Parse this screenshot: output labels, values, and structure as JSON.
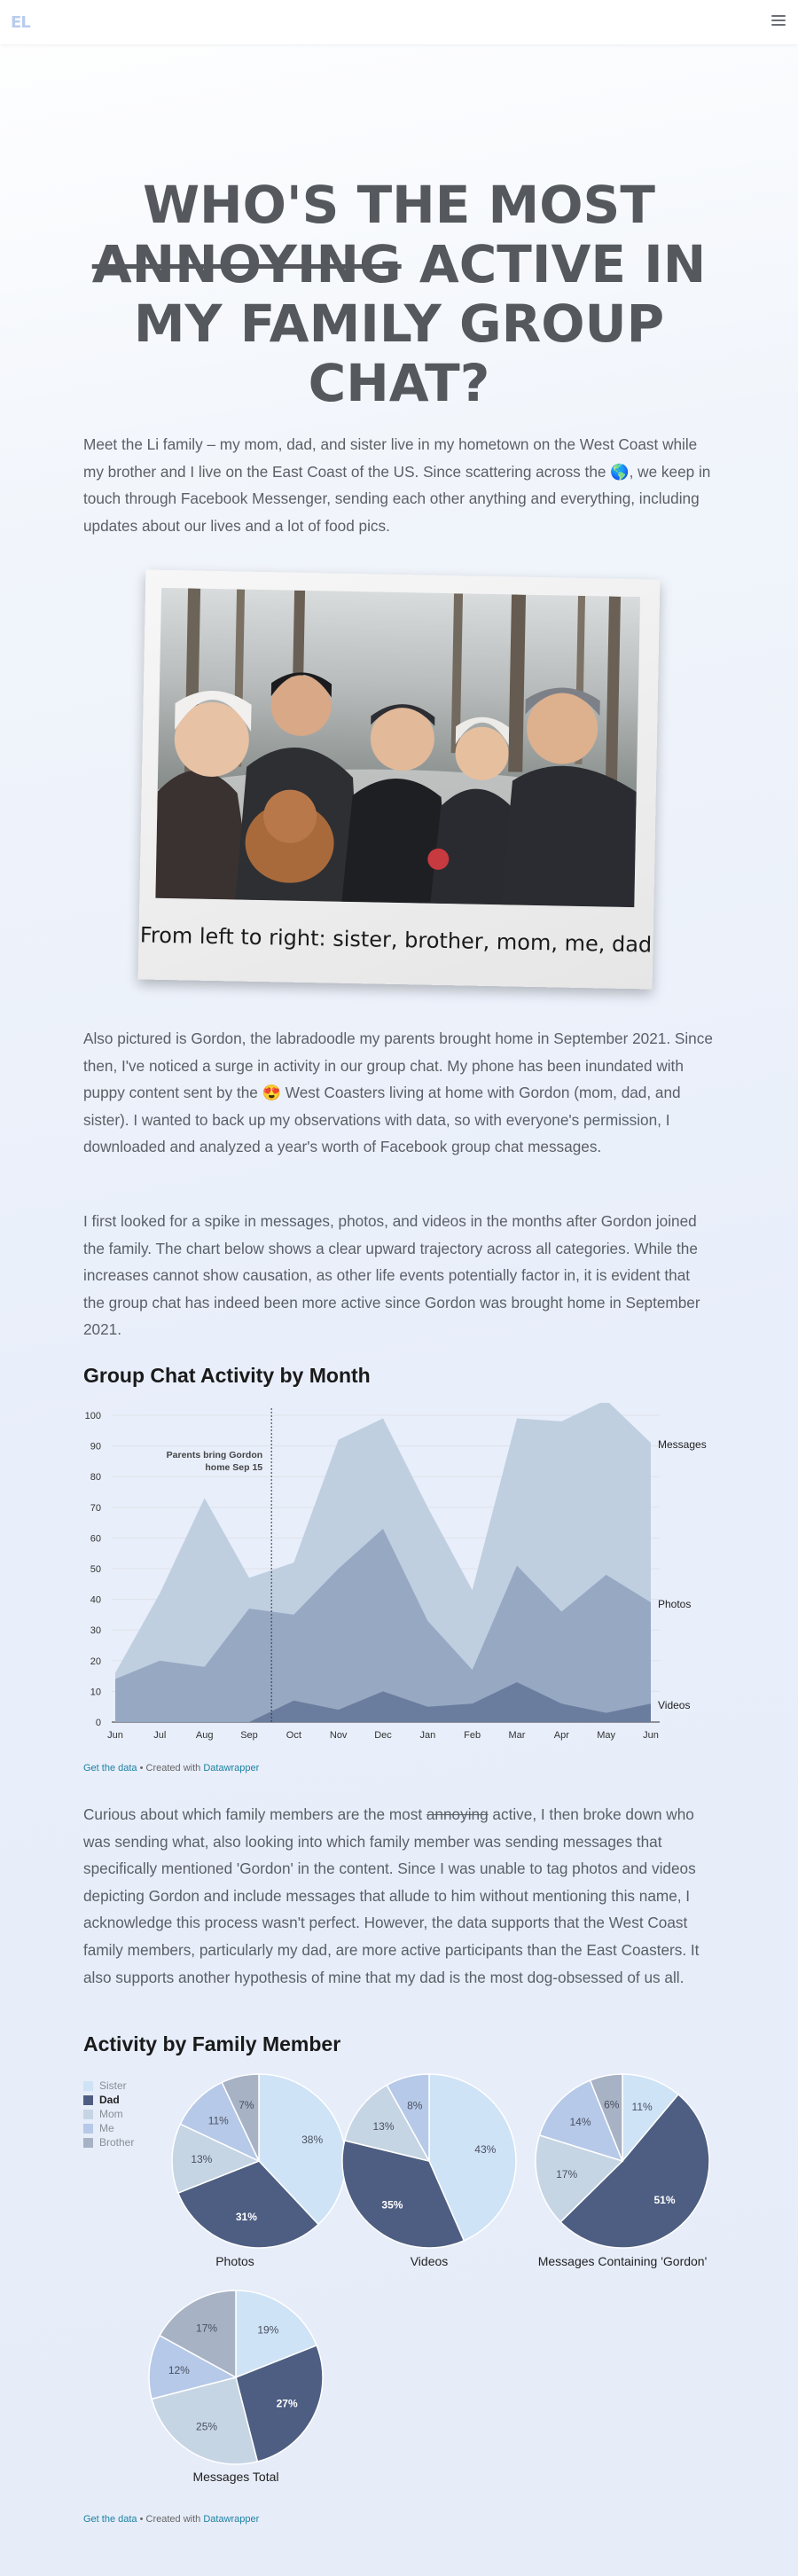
{
  "header": {
    "logo": "EL",
    "menu_icon": "hamburger-menu-icon"
  },
  "headline": {
    "line1": "WHO'S THE MOST",
    "struck_word": "ANNOYING",
    "line2_rest": " ACTIVE IN",
    "line3": "MY FAMILY GROUP",
    "line4": "CHAT?"
  },
  "intro": "Meet the Li family – my mom, dad, and sister live in my hometown on the West Coast while my brother and I live on the East Coast of the US. Since scattering across the 🌎, we keep in touch through Facebook Messenger, sending each other anything and everything, including updates about our lives and a lot of food pics.",
  "photo": {
    "caption": "From left to right: sister, brother, mom, me, dad"
  },
  "para2": "Also pictured is Gordon, the labradoodle my parents brought home in September 2021. Since then, I've noticed a surge in activity in our group chat. My phone has been inundated with puppy content sent by the 😍 West Coasters living at home with Gordon (mom, dad, and sister). I wanted to back up my observations with data, so with everyone's permission, I downloaded and analyzed a year's worth of Facebook group chat messages.",
  "para3": "I first looked for a spike in messages, photos, and videos in the months after Gordon joined the family. The chart below shows a clear upward trajectory across all categories. While the increases cannot show causation, as other life events potentially factor in, it is evident that the group chat has indeed been more active since Gordon was brought home in September 2021.",
  "para4": {
    "before": "Curious about which family members are the most ",
    "struck": "annoying",
    "after": " active, I then broke down who was sending what, also looking into which family member was sending messages that specifically mentioned 'Gordon' in the content. Since I was unable to tag photos and videos depicting Gordon and include messages that allude to him without mentioning this name, I acknowledge this process wasn't perfect. However, the data supports that the West Coast family members, particularly my dad, are more active participants than the East Coasters. It also supports another hypothesis of mine that my dad is the most dog-obsessed of us all."
  },
  "footnote": {
    "get_data": "Get the data",
    "sep": " • Created with ",
    "tool": "Datawrapper"
  },
  "chart_data": [
    {
      "type": "area",
      "title": "Group Chat Activity by Month",
      "categories": [
        "Jun",
        "Jul",
        "Aug",
        "Sep",
        "Oct",
        "Nov",
        "Dec",
        "Jan",
        "Feb",
        "Mar",
        "Apr",
        "May",
        "Jun"
      ],
      "ylim": [
        0,
        100
      ],
      "yticks": [
        0,
        10,
        20,
        30,
        40,
        50,
        60,
        70,
        80,
        90,
        100
      ],
      "grid": true,
      "annotation": {
        "line1": "Parents bring Gordon",
        "line2": "home Sep 15",
        "x": "Sep 15"
      },
      "series": [
        {
          "name": "Messages",
          "color": "#bfcfe0",
          "values": [
            16,
            42,
            73,
            47,
            52,
            92,
            99,
            70,
            43,
            99,
            98,
            105,
            91
          ]
        },
        {
          "name": "Photos",
          "color": "#97a8c3",
          "values": [
            14,
            20,
            18,
            37,
            35,
            50,
            63,
            33,
            17,
            51,
            36,
            48,
            39
          ]
        },
        {
          "name": "Videos",
          "color": "#6b7d9e",
          "values": [
            0,
            0,
            0,
            0,
            7,
            4,
            10,
            5,
            6,
            13,
            6,
            3,
            6
          ]
        }
      ]
    },
    {
      "type": "pie",
      "title": "Activity by Family Member",
      "legend": [
        {
          "name": "Sister",
          "color": "#cfe3f6"
        },
        {
          "name": "Dad",
          "color": "#4e5e82"
        },
        {
          "name": "Mom",
          "color": "#c6d5e4"
        },
        {
          "name": "Me",
          "color": "#b6c9e8"
        },
        {
          "name": "Brother",
          "color": "#a7b2c4"
        }
      ],
      "pies": [
        {
          "label": "Photos",
          "values": [
            38,
            31,
            13,
            11,
            7
          ]
        },
        {
          "label": "Videos",
          "values": [
            43,
            35,
            13,
            8,
            0
          ]
        },
        {
          "label": "Messages Containing 'Gordon'",
          "values": [
            11,
            51,
            17,
            14,
            6
          ]
        },
        {
          "label": "Messages Total",
          "values": [
            19,
            27,
            25,
            12,
            17
          ]
        }
      ]
    }
  ]
}
